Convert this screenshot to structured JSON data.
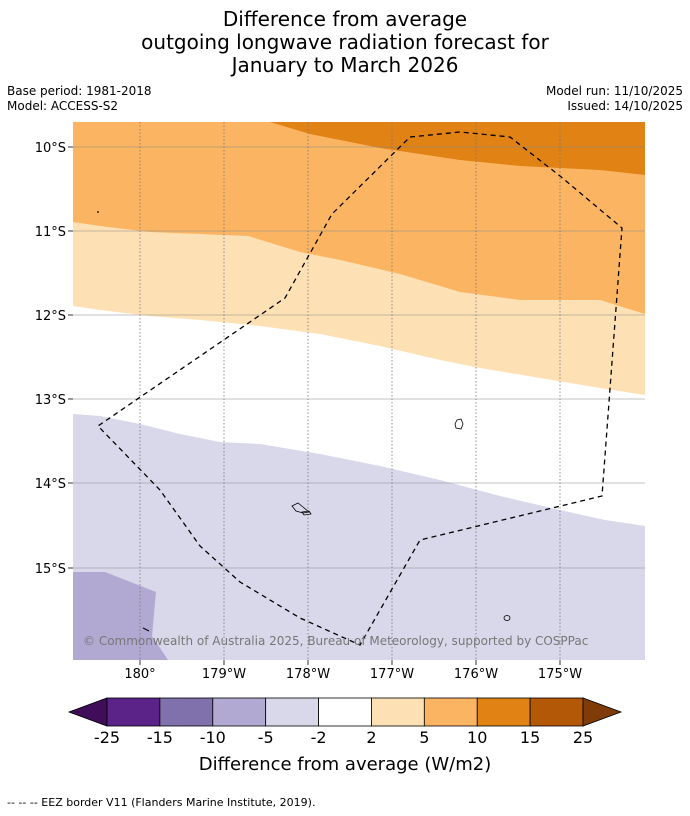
{
  "title": {
    "line1": "Difference from average",
    "line2": "outgoing longwave radiation forecast for",
    "line3": "January to March 2026"
  },
  "meta": {
    "base_period": "Base period: 1981-2018",
    "model": "Model: ACCESS-S2",
    "model_run": "Model run: 11/10/2025",
    "issued": "Issued: 14/10/2025"
  },
  "map": {
    "lat_labels": [
      "10°S",
      "11°S",
      "12°S",
      "13°S",
      "14°S",
      "15°S"
    ],
    "lon_labels": [
      "180°",
      "179°W",
      "178°W",
      "177°W",
      "176°W",
      "175°W"
    ],
    "copyright": "© Commonwealth of Australia 2025, Bureau of Meteorology, supported by COSPPac"
  },
  "colorbar": {
    "tick_labels": [
      "-25",
      "-15",
      "-10",
      "-5",
      "-2",
      "2",
      "5",
      "10",
      "15",
      "25"
    ],
    "label": "Difference from average (W/m2)",
    "colors": [
      "#3f0d59",
      "#5b2287",
      "#8070ab",
      "#b1a9d2",
      "#d8d8ea",
      "#ffffff",
      "#fde0b4",
      "#fbb562",
      "#e08214",
      "#b35806",
      "#7f3b08"
    ]
  },
  "legend": {
    "eez_text": "--  --  -- EEZ border V11 (Flanders Marine Institute, 2019)."
  }
}
